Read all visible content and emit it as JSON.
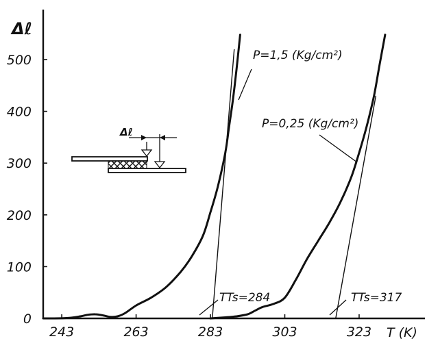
{
  "chart_data": {
    "type": "line",
    "title": "",
    "xlabel": "T (K)",
    "ylabel": "Δℓ",
    "xlim": [
      238,
      342
    ],
    "ylim": [
      0,
      560
    ],
    "x_ticks": [
      243,
      263,
      283,
      303,
      323
    ],
    "x_tick_labels": [
      "243",
      "263",
      "283",
      "303",
      "323"
    ],
    "y_ticks": [
      0,
      100,
      200,
      300,
      400,
      500
    ],
    "y_tick_labels": [
      "0",
      "100",
      "200",
      "300",
      "400",
      "500"
    ],
    "grid": false,
    "series": [
      {
        "name": "P=1,5 (Kg/cm²)",
        "x": [
          238,
          241,
          245,
          248,
          250,
          252,
          254,
          256,
          258,
          260,
          263,
          267,
          271,
          275,
          278,
          281,
          283,
          285,
          287,
          288,
          289,
          290,
          291
        ],
        "y": [
          0,
          0,
          1,
          4,
          7,
          8,
          6,
          3,
          4,
          10,
          25,
          40,
          60,
          90,
          120,
          160,
          205,
          255,
          320,
          370,
          420,
          480,
          548
        ]
      },
      {
        "name": "P=0,25 (Kg/cm²)",
        "x": [
          283,
          287,
          290,
          293,
          295,
          297,
          300,
          303,
          306,
          309,
          312,
          315,
          318,
          321,
          323,
          325,
          327,
          328.5,
          330
        ],
        "y": [
          0,
          2,
          4,
          8,
          15,
          22,
          28,
          40,
          75,
          115,
          150,
          185,
          225,
          275,
          320,
          370,
          430,
          490,
          548
        ]
      }
    ],
    "tangent_lines": [
      {
        "x": [
          283.5,
          289.4
        ],
        "y": [
          0,
          520
        ]
      },
      {
        "x": [
          316.7,
          327.5
        ],
        "y": [
          0,
          430
        ]
      }
    ],
    "annotations": [
      {
        "id": "p1",
        "text": "P=1,5 (Kg/cm²)"
      },
      {
        "id": "p2",
        "text": "P=0,25 (Kg/cm²)"
      },
      {
        "id": "t1",
        "text": "TTs=284"
      },
      {
        "id": "t2",
        "text": "TTs=317"
      },
      {
        "id": "dl",
        "text": "Δℓ"
      }
    ],
    "inset": "specimen schematic: two bars with hatched overlap region and displacement Δℓ"
  }
}
